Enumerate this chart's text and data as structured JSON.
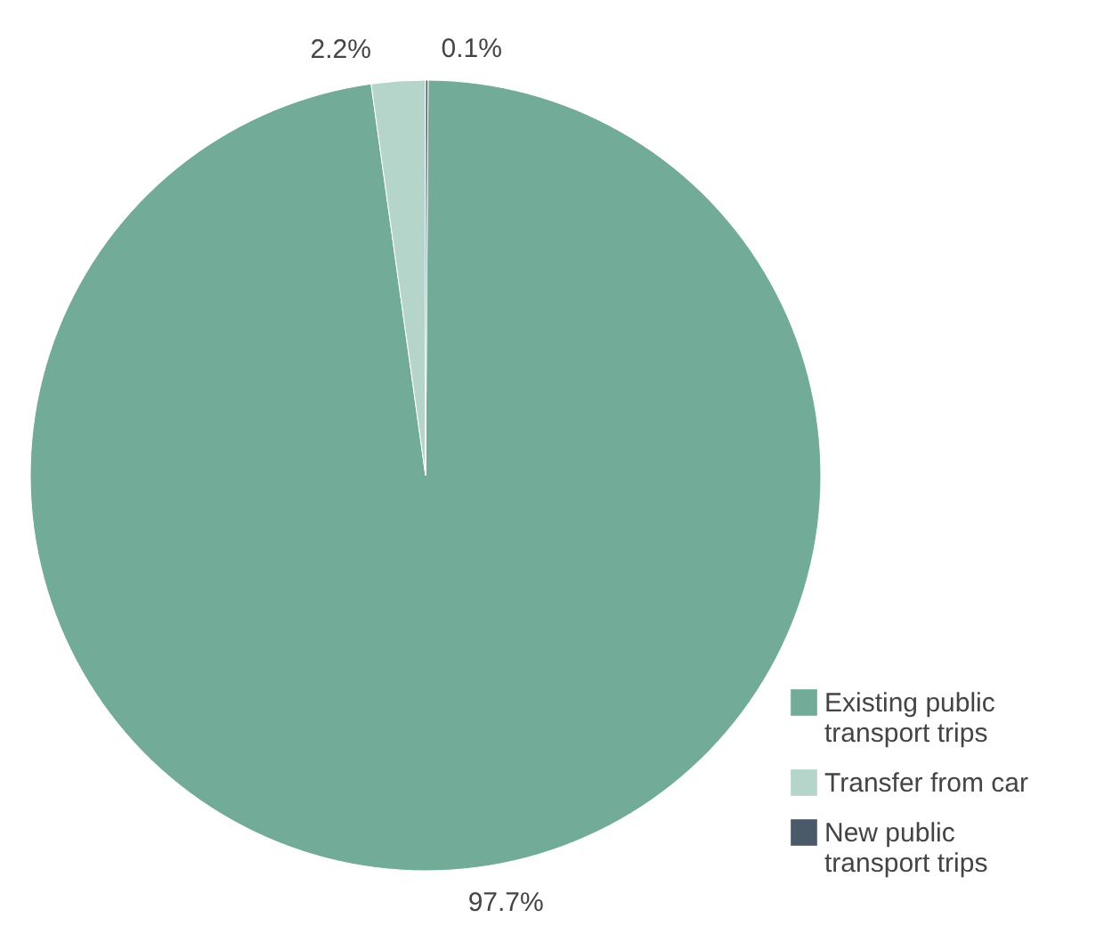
{
  "chart_data": {
    "type": "pie",
    "categories": [
      "Existing public transport trips",
      "Transfer from car",
      "New public transport trips"
    ],
    "values": [
      97.7,
      2.2,
      0.1
    ],
    "colors": [
      "#72ab97",
      "#b5d5cb",
      "#4b5a69"
    ],
    "value_labels": [
      "97.7%",
      "2.2%",
      "0.1%"
    ],
    "legend": "bottom right"
  }
}
